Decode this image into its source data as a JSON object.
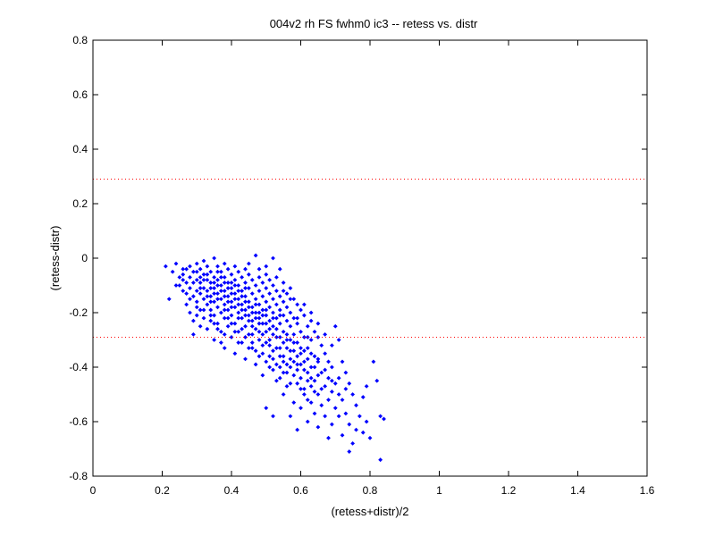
{
  "chart_data": {
    "type": "scatter",
    "title": "004v2 rh FS fwhm0 ic3 -- retess vs. distr",
    "xlabel": "(retess+distr)/2",
    "ylabel": "(retess-distr)",
    "xlim": [
      0,
      1.6
    ],
    "ylim": [
      -0.8,
      0.8
    ],
    "xticks": [
      0,
      0.2,
      0.4,
      0.6,
      0.8,
      1,
      1.2,
      1.4,
      1.6
    ],
    "xtick_labels": [
      "0",
      "0.2",
      "0.4",
      "0.6",
      "0.8",
      "1",
      "1.2",
      "1.4",
      "1.6"
    ],
    "yticks": [
      -0.8,
      -0.6,
      -0.4,
      -0.2,
      0,
      0.2,
      0.4,
      0.6,
      0.8
    ],
    "ytick_labels": [
      "-0.8",
      "-0.6",
      "-0.4",
      "-0.2",
      "0",
      "0.2",
      "0.4",
      "0.6",
      "0.8"
    ],
    "grid": false,
    "legend": "none",
    "colors": {
      "points": "#0000ff",
      "reference_lines": "#ff0000"
    },
    "reference_lines": [
      {
        "y": 0.29,
        "style": "dotted"
      },
      {
        "y": -0.29,
        "style": "dotted"
      }
    ],
    "points": [
      [
        0.21,
        -0.03
      ],
      [
        0.22,
        -0.15
      ],
      [
        0.23,
        -0.05
      ],
      [
        0.24,
        -0.02
      ],
      [
        0.25,
        -0.07
      ],
      [
        0.25,
        -0.1
      ],
      [
        0.26,
        -0.06
      ],
      [
        0.26,
        -0.12
      ],
      [
        0.27,
        -0.04
      ],
      [
        0.27,
        -0.09
      ],
      [
        0.27,
        -0.17
      ],
      [
        0.28,
        -0.03
      ],
      [
        0.28,
        -0.07
      ],
      [
        0.28,
        -0.11
      ],
      [
        0.28,
        -0.2
      ],
      [
        0.29,
        -0.05
      ],
      [
        0.29,
        -0.14
      ],
      [
        0.29,
        -0.23
      ],
      [
        0.29,
        -0.28
      ],
      [
        0.3,
        -0.02
      ],
      [
        0.3,
        -0.08
      ],
      [
        0.3,
        -0.12
      ],
      [
        0.3,
        -0.16
      ],
      [
        0.3,
        -0.21
      ],
      [
        0.31,
        -0.04
      ],
      [
        0.31,
        -0.09
      ],
      [
        0.31,
        -0.13
      ],
      [
        0.31,
        -0.19
      ],
      [
        0.31,
        -0.25
      ],
      [
        0.32,
        -0.01
      ],
      [
        0.32,
        -0.06
      ],
      [
        0.32,
        -0.11
      ],
      [
        0.32,
        -0.15
      ],
      [
        0.32,
        -0.22
      ],
      [
        0.33,
        -0.03
      ],
      [
        0.33,
        -0.08
      ],
      [
        0.33,
        -0.12
      ],
      [
        0.33,
        -0.17
      ],
      [
        0.33,
        -0.26
      ],
      [
        0.34,
        -0.05
      ],
      [
        0.34,
        -0.09
      ],
      [
        0.34,
        -0.14
      ],
      [
        0.34,
        -0.19
      ],
      [
        0.34,
        -0.23
      ],
      [
        0.35,
        0.0
      ],
      [
        0.35,
        -0.07
      ],
      [
        0.35,
        -0.11
      ],
      [
        0.35,
        -0.16
      ],
      [
        0.35,
        -0.21
      ],
      [
        0.35,
        -0.3
      ],
      [
        0.36,
        -0.03
      ],
      [
        0.36,
        -0.08
      ],
      [
        0.36,
        -0.13
      ],
      [
        0.36,
        -0.18
      ],
      [
        0.36,
        -0.24
      ],
      [
        0.37,
        -0.05
      ],
      [
        0.37,
        -0.1
      ],
      [
        0.37,
        -0.15
      ],
      [
        0.37,
        -0.2
      ],
      [
        0.37,
        -0.27
      ],
      [
        0.38,
        -0.02
      ],
      [
        0.38,
        -0.07
      ],
      [
        0.38,
        -0.12
      ],
      [
        0.38,
        -0.17
      ],
      [
        0.38,
        -0.22
      ],
      [
        0.38,
        -0.33
      ],
      [
        0.39,
        -0.04
      ],
      [
        0.39,
        -0.09
      ],
      [
        0.39,
        -0.14
      ],
      [
        0.39,
        -0.19
      ],
      [
        0.39,
        -0.25
      ],
      [
        0.4,
        -0.06
      ],
      [
        0.4,
        -0.11
      ],
      [
        0.4,
        -0.16
      ],
      [
        0.4,
        -0.21
      ],
      [
        0.4,
        -0.29
      ],
      [
        0.41,
        -0.03
      ],
      [
        0.41,
        -0.08
      ],
      [
        0.41,
        -0.13
      ],
      [
        0.41,
        -0.18
      ],
      [
        0.41,
        -0.24
      ],
      [
        0.41,
        -0.35
      ],
      [
        0.42,
        -0.05
      ],
      [
        0.42,
        -0.1
      ],
      [
        0.42,
        -0.15
      ],
      [
        0.42,
        -0.2
      ],
      [
        0.42,
        -0.27
      ],
      [
        0.43,
        -0.07
      ],
      [
        0.43,
        -0.12
      ],
      [
        0.43,
        -0.17
      ],
      [
        0.43,
        -0.22
      ],
      [
        0.43,
        -0.31
      ],
      [
        0.44,
        -0.04
      ],
      [
        0.44,
        -0.09
      ],
      [
        0.44,
        -0.14
      ],
      [
        0.44,
        -0.19
      ],
      [
        0.44,
        -0.25
      ],
      [
        0.44,
        -0.37
      ],
      [
        0.45,
        -0.06
      ],
      [
        0.45,
        -0.11
      ],
      [
        0.45,
        -0.16
      ],
      [
        0.45,
        -0.21
      ],
      [
        0.45,
        -0.28
      ],
      [
        0.46,
        -0.08
      ],
      [
        0.46,
        -0.13
      ],
      [
        0.46,
        -0.18
      ],
      [
        0.46,
        -0.23
      ],
      [
        0.46,
        -0.33
      ],
      [
        0.47,
        0.01
      ],
      [
        0.47,
        -0.1
      ],
      [
        0.47,
        -0.15
      ],
      [
        0.47,
        -0.2
      ],
      [
        0.47,
        -0.26
      ],
      [
        0.47,
        -0.39
      ],
      [
        0.48,
        -0.07
      ],
      [
        0.48,
        -0.12
      ],
      [
        0.48,
        -0.17
      ],
      [
        0.48,
        -0.22
      ],
      [
        0.48,
        -0.3
      ],
      [
        0.49,
        -0.09
      ],
      [
        0.49,
        -0.14
      ],
      [
        0.49,
        -0.19
      ],
      [
        0.49,
        -0.24
      ],
      [
        0.49,
        -0.35
      ],
      [
        0.49,
        -0.43
      ],
      [
        0.5,
        -0.03
      ],
      [
        0.5,
        -0.11
      ],
      [
        0.5,
        -0.16
      ],
      [
        0.5,
        -0.21
      ],
      [
        0.5,
        -0.27
      ],
      [
        0.5,
        -0.55
      ],
      [
        0.51,
        -0.08
      ],
      [
        0.51,
        -0.13
      ],
      [
        0.51,
        -0.18
      ],
      [
        0.51,
        -0.23
      ],
      [
        0.51,
        -0.32
      ],
      [
        0.51,
        -0.4
      ],
      [
        0.52,
        0.0
      ],
      [
        0.52,
        -0.1
      ],
      [
        0.52,
        -0.15
      ],
      [
        0.52,
        -0.2
      ],
      [
        0.52,
        -0.25
      ],
      [
        0.52,
        -0.37
      ],
      [
        0.52,
        -0.58
      ],
      [
        0.53,
        -0.12
      ],
      [
        0.53,
        -0.17
      ],
      [
        0.53,
        -0.22
      ],
      [
        0.53,
        -0.29
      ],
      [
        0.53,
        -0.45
      ],
      [
        0.54,
        -0.04
      ],
      [
        0.54,
        -0.14
      ],
      [
        0.54,
        -0.19
      ],
      [
        0.54,
        -0.24
      ],
      [
        0.54,
        -0.33
      ],
      [
        0.54,
        -0.4
      ],
      [
        0.55,
        -0.09
      ],
      [
        0.55,
        -0.16
      ],
      [
        0.55,
        -0.21
      ],
      [
        0.55,
        -0.27
      ],
      [
        0.55,
        -0.36
      ],
      [
        0.55,
        -0.5
      ],
      [
        0.56,
        -0.13
      ],
      [
        0.56,
        -0.18
      ],
      [
        0.56,
        -0.23
      ],
      [
        0.56,
        -0.3
      ],
      [
        0.56,
        -0.42
      ],
      [
        0.57,
        -0.11
      ],
      [
        0.57,
        -0.2
      ],
      [
        0.57,
        -0.25
      ],
      [
        0.57,
        -0.34
      ],
      [
        0.57,
        -0.46
      ],
      [
        0.57,
        -0.58
      ],
      [
        0.58,
        -0.15
      ],
      [
        0.58,
        -0.22
      ],
      [
        0.58,
        -0.28
      ],
      [
        0.58,
        -0.38
      ],
      [
        0.58,
        -0.53
      ],
      [
        0.59,
        -0.17
      ],
      [
        0.59,
        -0.24
      ],
      [
        0.59,
        -0.31
      ],
      [
        0.59,
        -0.41
      ],
      [
        0.59,
        -0.63
      ],
      [
        0.6,
        -0.19
      ],
      [
        0.6,
        -0.27
      ],
      [
        0.6,
        -0.35
      ],
      [
        0.6,
        -0.44
      ],
      [
        0.6,
        -0.55
      ],
      [
        0.61,
        -0.21
      ],
      [
        0.61,
        -0.29
      ],
      [
        0.61,
        -0.38
      ],
      [
        0.61,
        -0.48
      ],
      [
        0.62,
        -0.25
      ],
      [
        0.62,
        -0.33
      ],
      [
        0.62,
        -0.42
      ],
      [
        0.62,
        -0.52
      ],
      [
        0.62,
        -0.6
      ],
      [
        0.63,
        -0.23
      ],
      [
        0.63,
        -0.3
      ],
      [
        0.63,
        -0.4
      ],
      [
        0.63,
        -0.47
      ],
      [
        0.64,
        -0.27
      ],
      [
        0.64,
        -0.36
      ],
      [
        0.64,
        -0.45
      ],
      [
        0.64,
        -0.57
      ],
      [
        0.65,
        -0.29
      ],
      [
        0.65,
        -0.38
      ],
      [
        0.65,
        -0.5
      ],
      [
        0.65,
        -0.62
      ],
      [
        0.66,
        -0.32
      ],
      [
        0.66,
        -0.42
      ],
      [
        0.66,
        -0.54
      ],
      [
        0.67,
        -0.35
      ],
      [
        0.67,
        -0.47
      ],
      [
        0.67,
        -0.58
      ],
      [
        0.68,
        -0.38
      ],
      [
        0.68,
        -0.44
      ],
      [
        0.68,
        -0.52
      ],
      [
        0.68,
        -0.66
      ],
      [
        0.69,
        -0.4
      ],
      [
        0.69,
        -0.49
      ],
      [
        0.69,
        -0.61
      ],
      [
        0.7,
        -0.25
      ],
      [
        0.7,
        -0.46
      ],
      [
        0.7,
        -0.55
      ],
      [
        0.71,
        -0.3
      ],
      [
        0.71,
        -0.44
      ],
      [
        0.71,
        -0.58
      ],
      [
        0.72,
        -0.38
      ],
      [
        0.72,
        -0.52
      ],
      [
        0.72,
        -0.65
      ],
      [
        0.73,
        -0.42
      ],
      [
        0.73,
        -0.57
      ],
      [
        0.74,
        -0.46
      ],
      [
        0.74,
        -0.61
      ],
      [
        0.74,
        -0.71
      ],
      [
        0.75,
        -0.5
      ],
      [
        0.75,
        -0.68
      ],
      [
        0.76,
        -0.54
      ],
      [
        0.76,
        -0.63
      ],
      [
        0.77,
        -0.58
      ],
      [
        0.78,
        -0.51
      ],
      [
        0.78,
        -0.64
      ],
      [
        0.79,
        -0.47
      ],
      [
        0.79,
        -0.6
      ],
      [
        0.8,
        -0.66
      ],
      [
        0.81,
        -0.38
      ],
      [
        0.82,
        -0.45
      ],
      [
        0.83,
        -0.58
      ],
      [
        0.83,
        -0.74
      ],
      [
        0.84,
        -0.59
      ],
      [
        0.24,
        -0.1
      ],
      [
        0.26,
        -0.08
      ],
      [
        0.27,
        -0.13
      ],
      [
        0.29,
        -0.09
      ],
      [
        0.3,
        -0.05
      ],
      [
        0.31,
        -0.11
      ],
      [
        0.32,
        -0.08
      ],
      [
        0.33,
        -0.14
      ],
      [
        0.34,
        -0.11
      ],
      [
        0.35,
        -0.13
      ],
      [
        0.36,
        -0.1
      ],
      [
        0.37,
        -0.12
      ],
      [
        0.38,
        -0.09
      ],
      [
        0.39,
        -0.16
      ],
      [
        0.4,
        -0.13
      ],
      [
        0.41,
        -0.1
      ],
      [
        0.42,
        -0.12
      ],
      [
        0.43,
        -0.14
      ],
      [
        0.44,
        -0.11
      ],
      [
        0.45,
        -0.18
      ],
      [
        0.46,
        -0.2
      ],
      [
        0.47,
        -0.17
      ],
      [
        0.48,
        -0.24
      ],
      [
        0.49,
        -0.21
      ],
      [
        0.5,
        -0.19
      ],
      [
        0.51,
        -0.26
      ],
      [
        0.52,
        -0.22
      ],
      [
        0.53,
        -0.26
      ],
      [
        0.54,
        -0.29
      ],
      [
        0.55,
        -0.31
      ],
      [
        0.56,
        -0.33
      ],
      [
        0.57,
        -0.3
      ],
      [
        0.58,
        -0.34
      ],
      [
        0.59,
        -0.36
      ],
      [
        0.6,
        -0.39
      ],
      [
        0.61,
        -0.41
      ],
      [
        0.62,
        -0.37
      ],
      [
        0.63,
        -0.35
      ],
      [
        0.64,
        -0.4
      ],
      [
        0.65,
        -0.43
      ],
      [
        0.33,
        -0.06
      ],
      [
        0.35,
        -0.09
      ],
      [
        0.37,
        -0.07
      ],
      [
        0.39,
        -0.11
      ],
      [
        0.41,
        -0.15
      ],
      [
        0.43,
        -0.19
      ],
      [
        0.45,
        -0.23
      ],
      [
        0.47,
        -0.22
      ],
      [
        0.49,
        -0.28
      ],
      [
        0.51,
        -0.3
      ],
      [
        0.53,
        -0.33
      ],
      [
        0.55,
        -0.38
      ],
      [
        0.57,
        -0.4
      ],
      [
        0.59,
        -0.46
      ],
      [
        0.61,
        -0.5
      ],
      [
        0.63,
        -0.53
      ],
      [
        0.36,
        -0.15
      ],
      [
        0.38,
        -0.14
      ],
      [
        0.4,
        -0.18
      ],
      [
        0.42,
        -0.17
      ],
      [
        0.44,
        -0.21
      ],
      [
        0.46,
        -0.25
      ],
      [
        0.48,
        -0.27
      ],
      [
        0.5,
        -0.31
      ],
      [
        0.52,
        -0.34
      ],
      [
        0.54,
        -0.36
      ],
      [
        0.56,
        -0.39
      ],
      [
        0.58,
        -0.43
      ],
      [
        0.6,
        -0.48
      ],
      [
        0.62,
        -0.45
      ],
      [
        0.64,
        -0.49
      ],
      [
        0.66,
        -0.48
      ],
      [
        0.31,
        -0.07
      ],
      [
        0.34,
        -0.16
      ],
      [
        0.36,
        -0.05
      ],
      [
        0.38,
        -0.19
      ],
      [
        0.4,
        -0.09
      ],
      [
        0.42,
        -0.22
      ],
      [
        0.44,
        -0.16
      ],
      [
        0.46,
        -0.28
      ],
      [
        0.48,
        -0.2
      ],
      [
        0.5,
        -0.24
      ],
      [
        0.52,
        -0.28
      ],
      [
        0.54,
        -0.21
      ],
      [
        0.56,
        -0.28
      ],
      [
        0.58,
        -0.31
      ],
      [
        0.6,
        -0.33
      ],
      [
        0.62,
        -0.29
      ],
      [
        0.26,
        -0.04
      ],
      [
        0.28,
        -0.15
      ],
      [
        0.3,
        -0.18
      ],
      [
        0.32,
        -0.19
      ],
      [
        0.34,
        -0.21
      ],
      [
        0.36,
        -0.26
      ],
      [
        0.38,
        -0.28
      ],
      [
        0.4,
        -0.24
      ],
      [
        0.42,
        -0.31
      ],
      [
        0.44,
        -0.29
      ],
      [
        0.46,
        -0.31
      ],
      [
        0.48,
        -0.36
      ],
      [
        0.5,
        -0.38
      ],
      [
        0.52,
        -0.41
      ],
      [
        0.54,
        -0.44
      ],
      [
        0.56,
        -0.47
      ],
      [
        0.35,
        -0.24
      ],
      [
        0.37,
        -0.31
      ],
      [
        0.39,
        -0.22
      ],
      [
        0.41,
        -0.27
      ],
      [
        0.43,
        -0.26
      ],
      [
        0.45,
        -0.33
      ],
      [
        0.47,
        -0.34
      ],
      [
        0.49,
        -0.32
      ],
      [
        0.51,
        -0.36
      ],
      [
        0.53,
        -0.39
      ],
      [
        0.55,
        -0.42
      ],
      [
        0.57,
        -0.37
      ],
      [
        0.59,
        -0.39
      ],
      [
        0.61,
        -0.34
      ],
      [
        0.63,
        -0.44
      ],
      [
        0.65,
        -0.37
      ],
      [
        0.67,
        -0.41
      ],
      [
        0.69,
        -0.45
      ],
      [
        0.71,
        -0.5
      ],
      [
        0.73,
        -0.48
      ],
      [
        0.45,
        -0.02
      ],
      [
        0.48,
        -0.04
      ],
      [
        0.5,
        -0.06
      ],
      [
        0.53,
        -0.07
      ],
      [
        0.55,
        -0.12
      ],
      [
        0.57,
        -0.15
      ],
      [
        0.59,
        -0.22
      ],
      [
        0.61,
        -0.17
      ],
      [
        0.63,
        -0.2
      ],
      [
        0.65,
        -0.24
      ],
      [
        0.67,
        -0.28
      ],
      [
        0.69,
        -0.32
      ]
    ]
  }
}
